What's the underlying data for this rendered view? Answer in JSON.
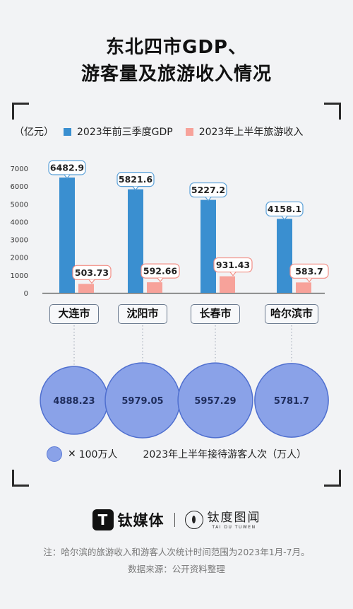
{
  "title": {
    "line1": "东北四市GDP、",
    "line2": "游客量及旅游收入情况"
  },
  "legend": {
    "unit": "（亿元）",
    "series1": "2023年前三季度GDP",
    "series2": "2023年上半年旅游收入"
  },
  "colors": {
    "gdp": "#3a8fd0",
    "tourism": "#f7a29a",
    "circle_fill": "#8aa2e8",
    "circle_stroke": "#4f6fcf"
  },
  "chart_data": {
    "type": "bar",
    "categories": [
      "大连市",
      "沈阳市",
      "长春市",
      "哈尔滨市"
    ],
    "series": [
      {
        "name": "2023年前三季度GDP",
        "values": [
          6482.9,
          5821.6,
          5227.2,
          4158.1
        ]
      },
      {
        "name": "2023年上半年旅游收入",
        "values": [
          503.73,
          592.66,
          931.43,
          583.7
        ]
      }
    ],
    "value_labels": [
      [
        "6482.9",
        "5821.6",
        "5227.2",
        "4158.1"
      ],
      [
        "503.73",
        "592.66",
        "931.43",
        "583.7"
      ]
    ],
    "ylabel": "（亿元）",
    "ylim": [
      0,
      7000
    ],
    "yticks": [
      0,
      1000,
      2000,
      3000,
      4000,
      5000,
      6000,
      7000
    ],
    "grid": false,
    "legend_position": "top-left"
  },
  "visitors": {
    "values": [
      4888.23,
      5979.05,
      5957.29,
      5781.7
    ],
    "labels": [
      "4888.23",
      "5979.05",
      "5957.29",
      "5781.7"
    ]
  },
  "bottom_legend": {
    "x_symbol": "✕",
    "scale": "100万人",
    "description": "2023年上半年接待游客人次（万人）"
  },
  "brand": {
    "logo1_mark": "T",
    "logo1_text": "钛媒体",
    "logo2_cn": "钛度图闻",
    "logo2_en": "TAI DU TUWEN"
  },
  "footer": {
    "note": "注：哈尔滨的旅游收入和游客人次统计时间范围为2023年1月-7月。",
    "source": "数据来源：公开资料整理"
  }
}
